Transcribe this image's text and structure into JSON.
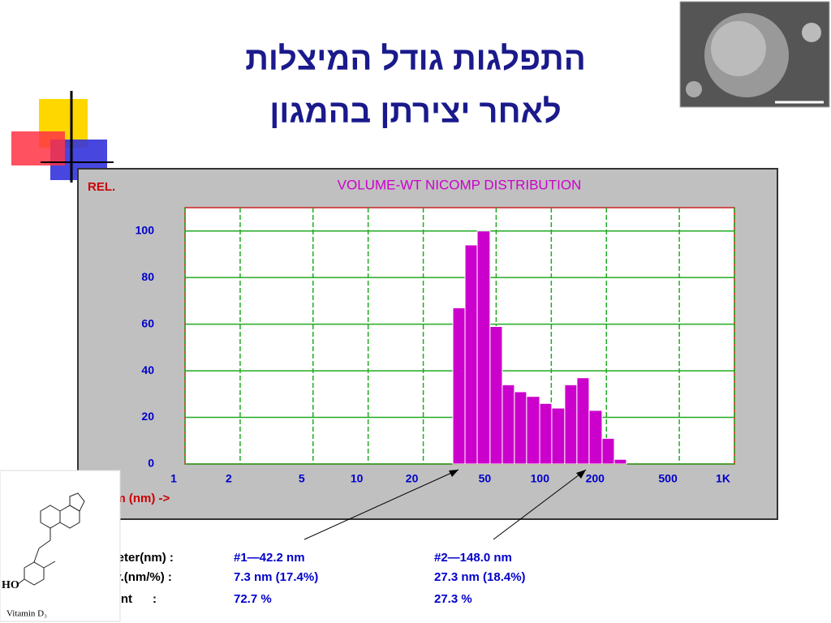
{
  "header": {
    "title_lines": [
      "התפלגות גודל המיצלות",
      "לאחר יצירתן בהמגון"
    ]
  },
  "chart_data": {
    "type": "histogram",
    "title": "VOLUME-WT NICOMP DISTRIBUTION",
    "y_label": "REL.",
    "x_label": "Diam (nm) ->",
    "bins": [
      29.0,
      33.8,
      39.4,
      46.3,
      54.0,
      62.9,
      73.3,
      86.4,
      100.6,
      118.4,
      138.0,
      160.9,
      189.4,
      220.8,
      257.2
    ],
    "values": [
      67,
      94,
      100,
      59,
      34,
      31,
      29,
      26,
      24,
      34,
      37,
      23,
      11,
      2
    ],
    "color": "#cc00cc",
    "xscale": "log",
    "xlim": [
      1,
      1000
    ],
    "ylim": [
      0,
      110
    ],
    "xticks": [
      1,
      2,
      5,
      10,
      20,
      50,
      100,
      200,
      500,
      {
        "value": 1000,
        "label": "1K"
      }
    ],
    "yticks": [
      0,
      20,
      40,
      60,
      80,
      100
    ],
    "grid": true
  },
  "stats": {
    "rows": [
      [
        "Diameter(nm) :",
        "#1—42.2 nm",
        "#2—148.0 nm"
      ],
      [
        "S.Dev.(nm/%) :",
        "7.3 nm (17.4%)",
        "27.3 nm (18.4%)"
      ],
      [
        "Percent      :",
        "72.7 %",
        "27.3 %"
      ]
    ]
  },
  "molecule": {
    "label": "HO",
    "caption": "Vitamin D₃"
  }
}
